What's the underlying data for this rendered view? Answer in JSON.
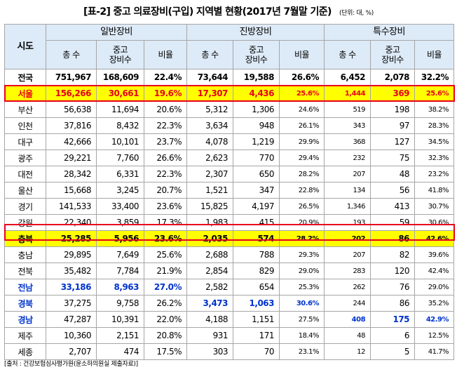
{
  "title": "[표-2] 중고 의료장비(구입) 지역별 현황(2017년 7월말 기준)",
  "unit": "(단위: 대, %)",
  "header": {
    "region": "시도",
    "groups": [
      "일반장비",
      "진방장비",
      "특수장비"
    ],
    "sub": [
      "총 수",
      "중고\n장비수",
      "비율"
    ]
  },
  "rows": [
    {
      "region": "전국",
      "cells": [
        "751,967",
        "168,609",
        "22.4%",
        "73,644",
        "19,588",
        "26.6%",
        "6,452",
        "2,078",
        "32.2%"
      ]
    },
    {
      "region": "서울",
      "cells": [
        "156,266",
        "30,661",
        "19.6%",
        "17,307",
        "4,436",
        "25.6%",
        "1,444",
        "369",
        "25.6%"
      ]
    },
    {
      "region": "부산",
      "cells": [
        "56,638",
        "11,694",
        "20.6%",
        "5,312",
        "1,306",
        "24.6%",
        "519",
        "198",
        "38.2%"
      ]
    },
    {
      "region": "인천",
      "cells": [
        "37,816",
        "8,432",
        "22.3%",
        "3,634",
        "948",
        "26.1%",
        "343",
        "97",
        "28.3%"
      ]
    },
    {
      "region": "대구",
      "cells": [
        "42,666",
        "10,101",
        "23.7%",
        "4,078",
        "1,219",
        "29.9%",
        "368",
        "127",
        "34.5%"
      ]
    },
    {
      "region": "광주",
      "cells": [
        "29,221",
        "7,760",
        "26.6%",
        "2,623",
        "770",
        "29.4%",
        "232",
        "75",
        "32.3%"
      ]
    },
    {
      "region": "대전",
      "cells": [
        "28,342",
        "6,331",
        "22.3%",
        "2,307",
        "650",
        "28.2%",
        "207",
        "48",
        "23.2%"
      ]
    },
    {
      "region": "울산",
      "cells": [
        "15,668",
        "3,245",
        "20.7%",
        "1,521",
        "347",
        "22.8%",
        "134",
        "56",
        "41.8%"
      ]
    },
    {
      "region": "경기",
      "cells": [
        "141,533",
        "33,400",
        "23.6%",
        "15,825",
        "4,197",
        "26.5%",
        "1,346",
        "413",
        "30.7%"
      ]
    },
    {
      "region": "강원",
      "cells": [
        "22,340",
        "3,859",
        "17.3%",
        "1,983",
        "415",
        "20.9%",
        "193",
        "59",
        "30.6%"
      ]
    },
    {
      "region": "충북",
      "cells": [
        "25,285",
        "5,956",
        "23.6%",
        "2,035",
        "574",
        "28.2%",
        "202",
        "86",
        "42.6%"
      ]
    },
    {
      "region": "충남",
      "cells": [
        "29,895",
        "7,649",
        "25.6%",
        "2,688",
        "788",
        "29.3%",
        "207",
        "82",
        "39.6%"
      ]
    },
    {
      "region": "전북",
      "cells": [
        "35,482",
        "7,784",
        "21.9%",
        "2,854",
        "829",
        "29.0%",
        "283",
        "120",
        "42.4%"
      ]
    },
    {
      "region": "전남",
      "cells": [
        "33,186",
        "8,963",
        "27.0%",
        "2,582",
        "654",
        "25.3%",
        "262",
        "76",
        "29.0%"
      ]
    },
    {
      "region": "경북",
      "cells": [
        "37,275",
        "9,758",
        "26.2%",
        "3,473",
        "1,063",
        "30.6%",
        "244",
        "86",
        "35.2%"
      ]
    },
    {
      "region": "경남",
      "cells": [
        "47,287",
        "10,391",
        "22.0%",
        "4,188",
        "1,151",
        "27.5%",
        "408",
        "175",
        "42.9%"
      ]
    },
    {
      "region": "제주",
      "cells": [
        "10,360",
        "2,151",
        "20.8%",
        "931",
        "171",
        "18.4%",
        "48",
        "6",
        "12.5%"
      ]
    },
    {
      "region": "세종",
      "cells": [
        "2,707",
        "474",
        "17.5%",
        "303",
        "70",
        "23.1%",
        "12",
        "5",
        "41.7%"
      ]
    }
  ],
  "source": "[출처 : 건강보험심사평가원(윤소하의원실 제출자료)]",
  "colors": {
    "highlight_fill": "#ffff00",
    "highlight_border": "#e8001c",
    "emphasis_text": "#0033cc",
    "header_fill": "#ddeaf7"
  }
}
